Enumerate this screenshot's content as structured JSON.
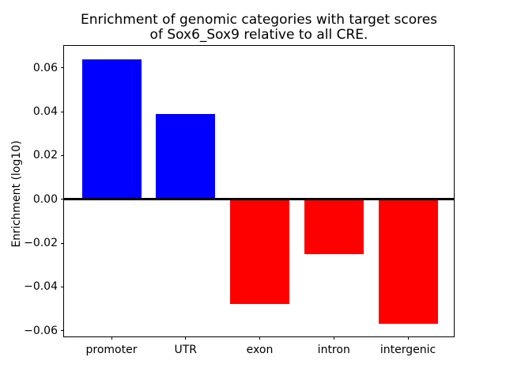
{
  "chart_data": {
    "type": "bar",
    "title": "Enrichment of genomic categories with target scores of Sox6_Sox9 relative to all CRE.",
    "title_lines": [
      "Enrichment of genomic categories with target scores",
      "of Sox6_Sox9 relative to all CRE."
    ],
    "xlabel": "",
    "ylabel": "Enrichment (log10)",
    "categories": [
      "promoter",
      "UTR",
      "exon",
      "intron",
      "intergenic"
    ],
    "values": [
      0.064,
      0.039,
      -0.048,
      -0.025,
      -0.057
    ],
    "ylim": [
      -0.0634,
      0.0701
    ],
    "yticks": [
      0.06,
      0.04,
      0.02,
      0.0,
      -0.02,
      -0.04,
      -0.06
    ],
    "ytick_labels": [
      "0.06",
      "0.04",
      "0.02",
      "0.00",
      "−0.02",
      "−0.04",
      "−0.06"
    ],
    "bar_width_fraction": 0.8,
    "grid": false,
    "legend": null,
    "colors": {
      "positive_bar": "#0000ff",
      "negative_bar": "#ff0000",
      "zero_line": "#000000",
      "axis": "#000000",
      "background": "#ffffff"
    }
  }
}
